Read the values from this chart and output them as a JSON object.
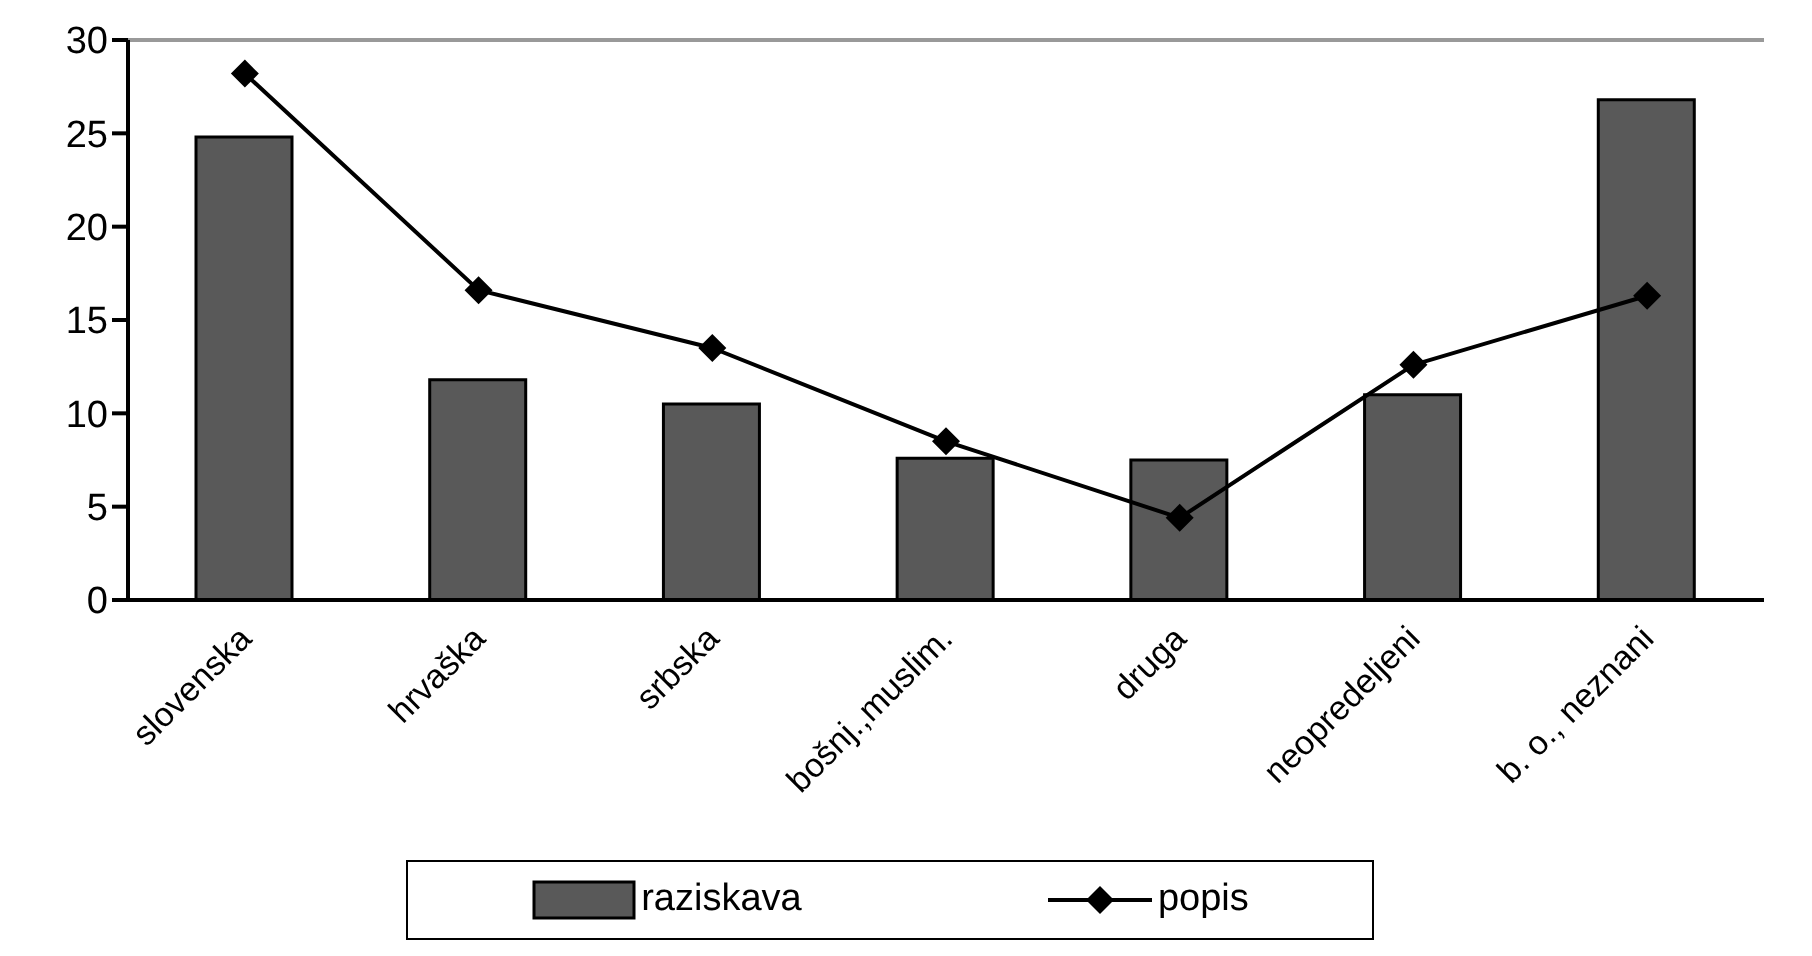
{
  "chart_data": {
    "type": "bar",
    "categories": [
      "slovenska",
      "hrvaška",
      "srbska",
      "bošnj.,muslim.",
      "druga",
      "neopredeljeni",
      "b. o., neznani"
    ],
    "series": [
      {
        "name": "raziskava",
        "color": "#595959",
        "values": [
          24.8,
          11.8,
          10.5,
          7.6,
          7.5,
          11.0,
          26.8
        ]
      },
      {
        "name": "popis",
        "type": "line",
        "color": "#000000",
        "marker": "diamond",
        "values": [
          28.2,
          16.6,
          13.5,
          8.5,
          4.4,
          12.6,
          16.3
        ]
      }
    ],
    "ylim": [
      0,
      30
    ],
    "yticks": [
      0,
      5,
      10,
      15,
      20,
      25,
      30
    ],
    "legend": "bottom"
  }
}
